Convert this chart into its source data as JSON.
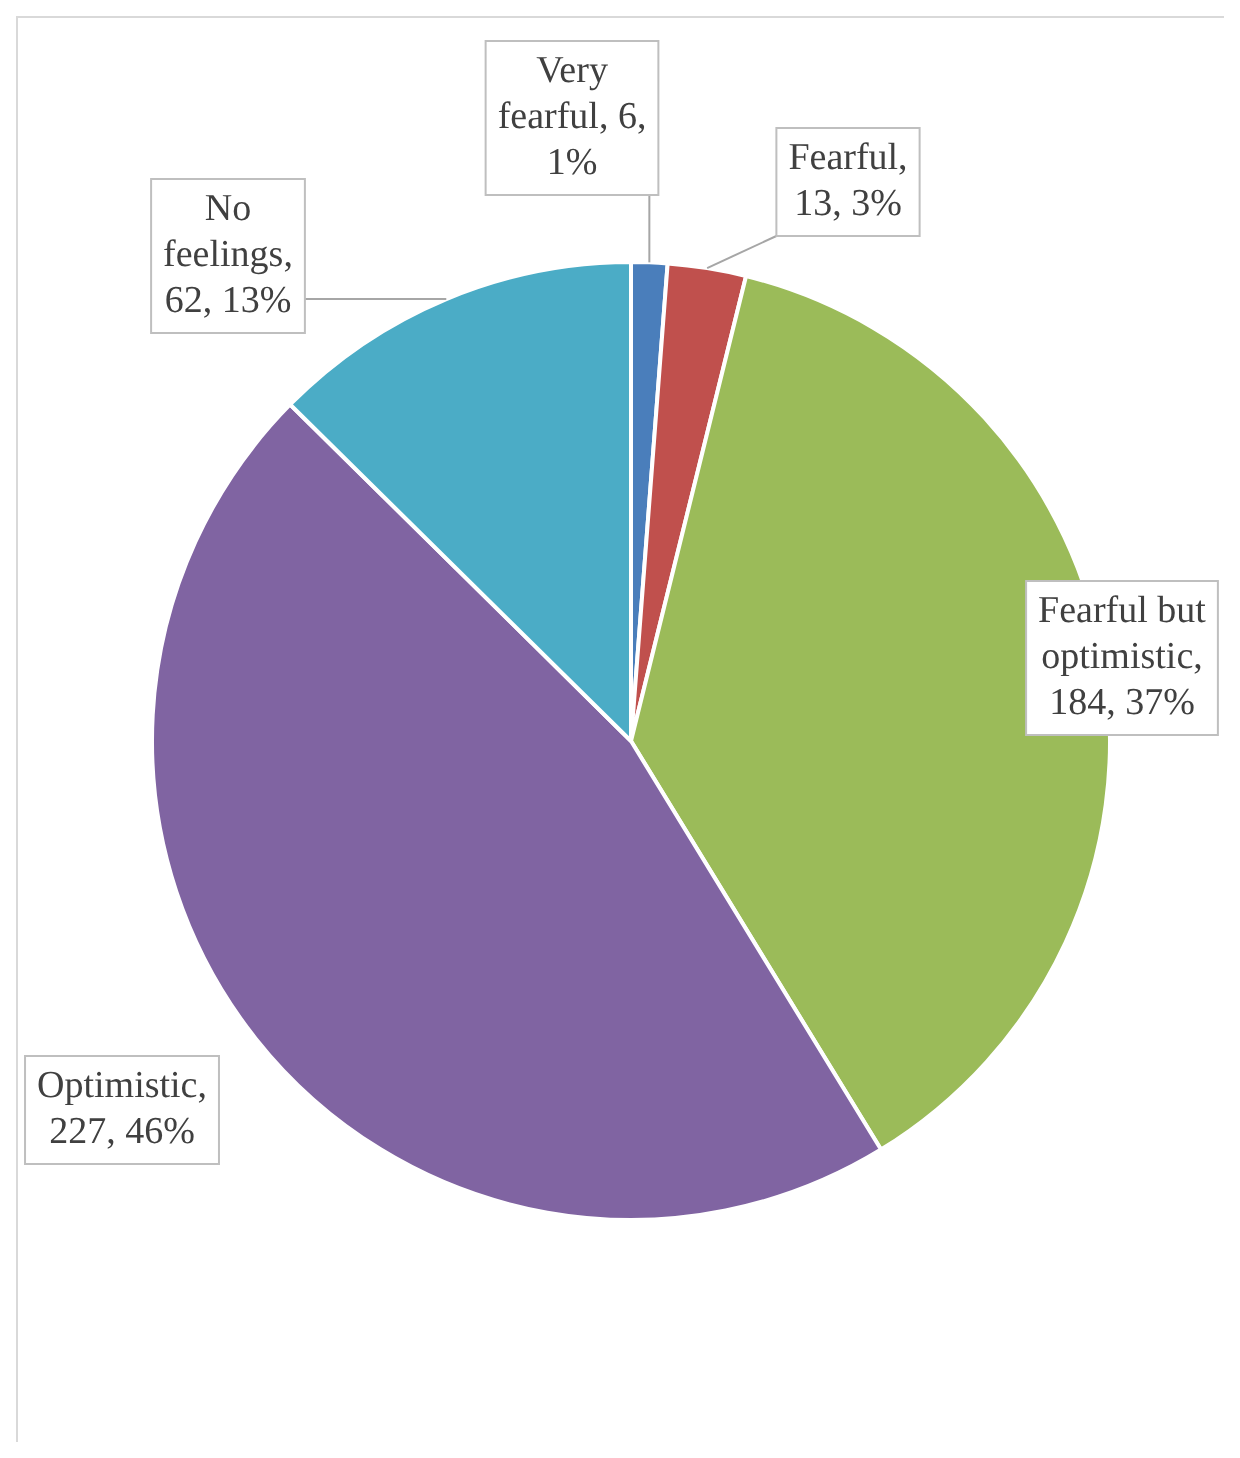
{
  "chart_data": {
    "type": "pie",
    "categories": [
      "Very fearful",
      "Fearful",
      "Fearful but optimistic",
      "Optimistic",
      "No feelings"
    ],
    "values": [
      6,
      13,
      184,
      227,
      62
    ],
    "colors": [
      "#4a7ebb",
      "#c0504d",
      "#9bbb59",
      "#8064a2",
      "#4bacc6"
    ],
    "value_labels": [
      ", 6, 1%",
      ", 13, 3%",
      ", 184, 37%",
      ", 227, 46%",
      ", 62, 13%"
    ],
    "legend": false
  }
}
